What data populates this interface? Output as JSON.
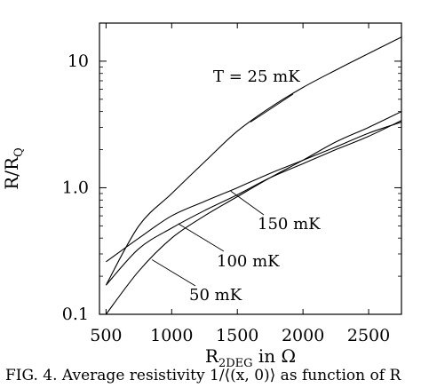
{
  "chart_data": {
    "type": "line",
    "title": "",
    "xlabel": "R",
    "xlabel_sub": "2DEG",
    "xlabel_suffix": " in Ω",
    "ylabel": "R/R",
    "ylabel_sub": "Q",
    "xlim": [
      450,
      2750
    ],
    "ylim": [
      0.1,
      20
    ],
    "yscale": "log",
    "grid": false,
    "x_ticks": [
      500,
      1000,
      1500,
      2000,
      2500
    ],
    "y_ticks": [
      0.1,
      1.0,
      10
    ],
    "y_tick_labels": [
      "0.1",
      "1.0",
      "10"
    ],
    "series": [
      {
        "name": "T = 25 mK",
        "x": [
          500,
          750,
          1000,
          1250,
          1500,
          1750,
          2000,
          2250,
          2500,
          2750
        ],
        "y": [
          0.17,
          0.5,
          0.9,
          1.6,
          2.8,
          4.3,
          6.2,
          8.5,
          11.5,
          15.5
        ]
      },
      {
        "name": "150 mK",
        "x": [
          500,
          750,
          1000,
          1250,
          1500,
          1750,
          2000,
          2250,
          2500,
          2750
        ],
        "y": [
          0.26,
          0.4,
          0.6,
          0.78,
          1.0,
          1.3,
          1.65,
          2.1,
          2.7,
          3.3
        ]
      },
      {
        "name": "100 mK",
        "x": [
          500,
          750,
          1000,
          1250,
          1500,
          1750,
          2000,
          2250,
          2500,
          2750
        ],
        "y": [
          0.17,
          0.33,
          0.48,
          0.66,
          0.88,
          1.2,
          1.55,
          2.0,
          2.55,
          3.4
        ]
      },
      {
        "name": "50 mK",
        "x": [
          500,
          750,
          1000,
          1250,
          1500,
          1750,
          2000,
          2250,
          2500,
          2750
        ],
        "y": [
          0.1,
          0.22,
          0.4,
          0.6,
          0.85,
          1.2,
          1.65,
          2.3,
          3.0,
          4.0
        ]
      }
    ],
    "annotations": [
      {
        "text": "T = 25 mK",
        "series": "T = 25 mK"
      },
      {
        "text": "150 mK",
        "series": "150 mK"
      },
      {
        "text": "100 mK",
        "series": "100 mK"
      },
      {
        "text": "50 mK",
        "series": "50 mK"
      }
    ]
  },
  "caption": "FIG. 4. Average resistivity 1/⟨(x, 0)⟩ as function of R"
}
